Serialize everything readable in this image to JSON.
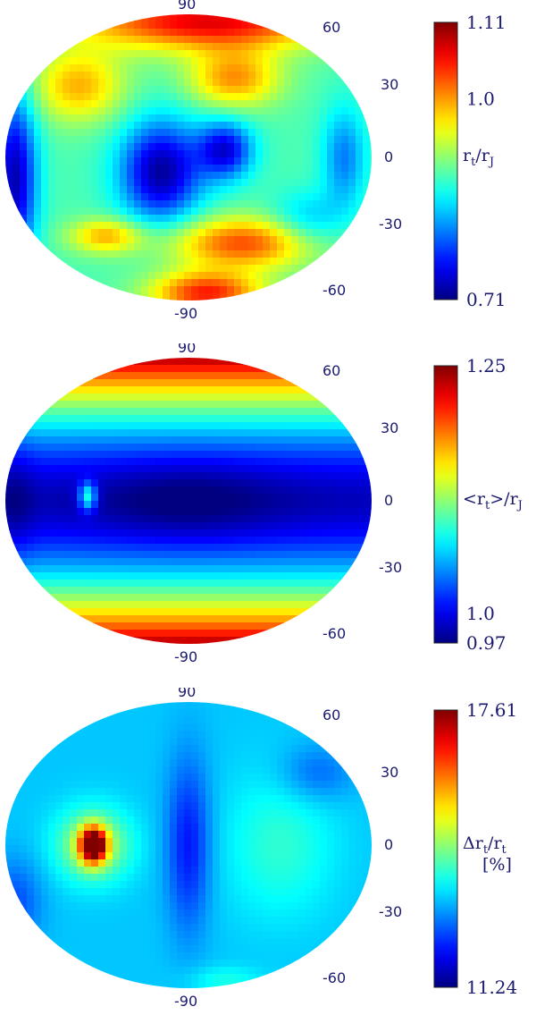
{
  "chart_data": [
    {
      "type": "heatmap",
      "projection": "aitoff",
      "colormap": "jet",
      "title": "",
      "colorbar": {
        "label_main": "r",
        "label_sub": "t",
        "label_den": "/r",
        "label_den_sub": "J",
        "min": 0.71,
        "max": 1.11,
        "ticks": [
          {
            "value": 1.11,
            "label": "1.11"
          },
          {
            "value": 1.0,
            "label": "1.0"
          },
          {
            "value": 0.71,
            "label": "0.71"
          }
        ]
      },
      "lat_ticks": [
        "90",
        "60",
        "30",
        "0",
        "-30",
        "-60",
        "-90"
      ],
      "pattern": "structured"
    },
    {
      "type": "heatmap",
      "projection": "aitoff",
      "colormap": "jet",
      "title": "",
      "colorbar": {
        "label_main": "<r",
        "label_sub": "t",
        "label_den": ">/r",
        "label_den_sub": "J",
        "min": 0.97,
        "max": 1.25,
        "ticks": [
          {
            "value": 1.25,
            "label": "1.25"
          },
          {
            "value": 1.0,
            "label": "1.0"
          },
          {
            "value": 0.97,
            "label": "0.97"
          }
        ]
      },
      "lat_ticks": [
        "90",
        "60",
        "30",
        "0",
        "-30",
        "-60",
        "-90"
      ],
      "pattern": "latitudinal"
    },
    {
      "type": "heatmap",
      "projection": "aitoff",
      "colormap": "jet",
      "title": "",
      "colorbar": {
        "label_main": "Δr",
        "label_sub": "t",
        "label_den": "/r",
        "label_den_sub": "t",
        "label_extra": "[%]",
        "min": 11.24,
        "max": 17.61,
        "ticks": [
          {
            "value": 17.61,
            "label": "17.61"
          },
          {
            "value": 11.24,
            "label": "11.24"
          }
        ]
      },
      "lat_ticks": [
        "90",
        "60",
        "30",
        "0",
        "-30",
        "-60",
        "-90"
      ],
      "pattern": "mixed"
    }
  ]
}
